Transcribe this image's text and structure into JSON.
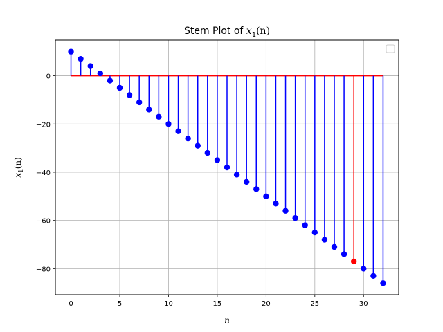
{
  "chart_data": {
    "type": "stem",
    "title_prefix": "Stem Plot of ",
    "title_math": "x",
    "title_sub": "1",
    "title_suffix": "(n)",
    "xlabel": "n",
    "ylabel_math": "x",
    "ylabel_sub": "1",
    "ylabel_suffix": "(n)",
    "x": [
      0,
      1,
      2,
      3,
      4,
      5,
      6,
      7,
      8,
      9,
      10,
      11,
      12,
      13,
      14,
      15,
      16,
      17,
      18,
      19,
      20,
      21,
      22,
      23,
      24,
      25,
      26,
      27,
      28,
      29,
      30,
      31,
      32
    ],
    "values": [
      10,
      7,
      4,
      1,
      -2,
      -5,
      -8,
      -11,
      -14,
      -17,
      -20,
      -23,
      -26,
      -29,
      -32,
      -35,
      -38,
      -41,
      -44,
      -47,
      -50,
      -53,
      -56,
      -59,
      -62,
      -65,
      -68,
      -71,
      -74,
      -77,
      -80,
      -83,
      -86
    ],
    "highlight_index": 29,
    "xlim": [
      -1.6,
      33.6
    ],
    "ylim": [
      -90.8,
      14.8
    ],
    "xticks": [
      0,
      5,
      10,
      15,
      20,
      25,
      30
    ],
    "yticks": [
      -80,
      -60,
      -40,
      -20,
      0
    ],
    "ytick_labels": [
      "−80",
      "−60",
      "−40",
      "−20",
      "0"
    ],
    "baseline": 0,
    "grid": true,
    "legend": "top-right, empty",
    "colors": {
      "stem": "#0000ff",
      "marker": "#0000ff",
      "highlight": "#ff0000",
      "baseline": "#ff0000",
      "grid": "#b0b0b0",
      "axes": "#000000"
    }
  }
}
